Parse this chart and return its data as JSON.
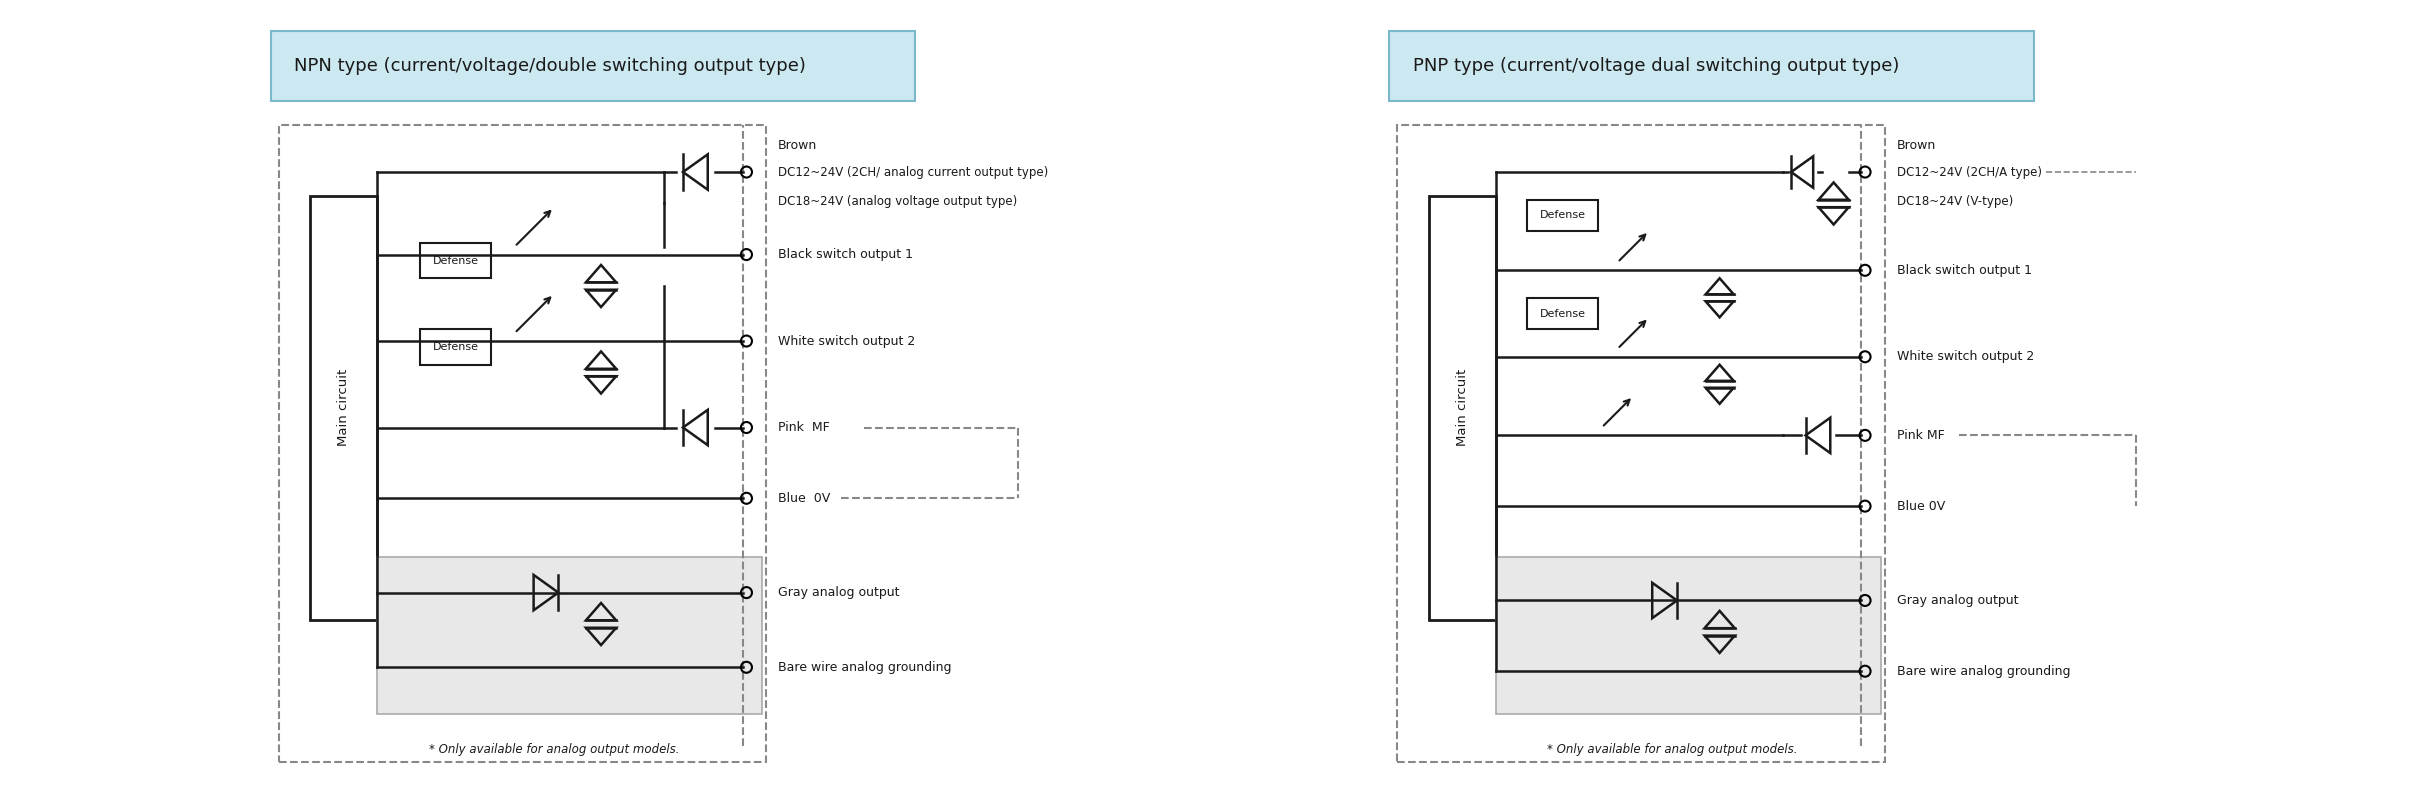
{
  "bg_color": "#ffffff",
  "title_npn": "NPN type (current/voltage/double switching output type)",
  "title_pnp": "PNP type (current/voltage dual switching output type)",
  "title_bg": "#cce8f0",
  "title_border": "#7ab8cc",
  "line_color": "#1a1a1a",
  "label_color": "#1a1a1a",
  "defense_border": "#1a1a1a",
  "dashed_border": "#888888",
  "gray_box_bg": "#e8e8e8",
  "footnote": "* Only available for analog output models."
}
